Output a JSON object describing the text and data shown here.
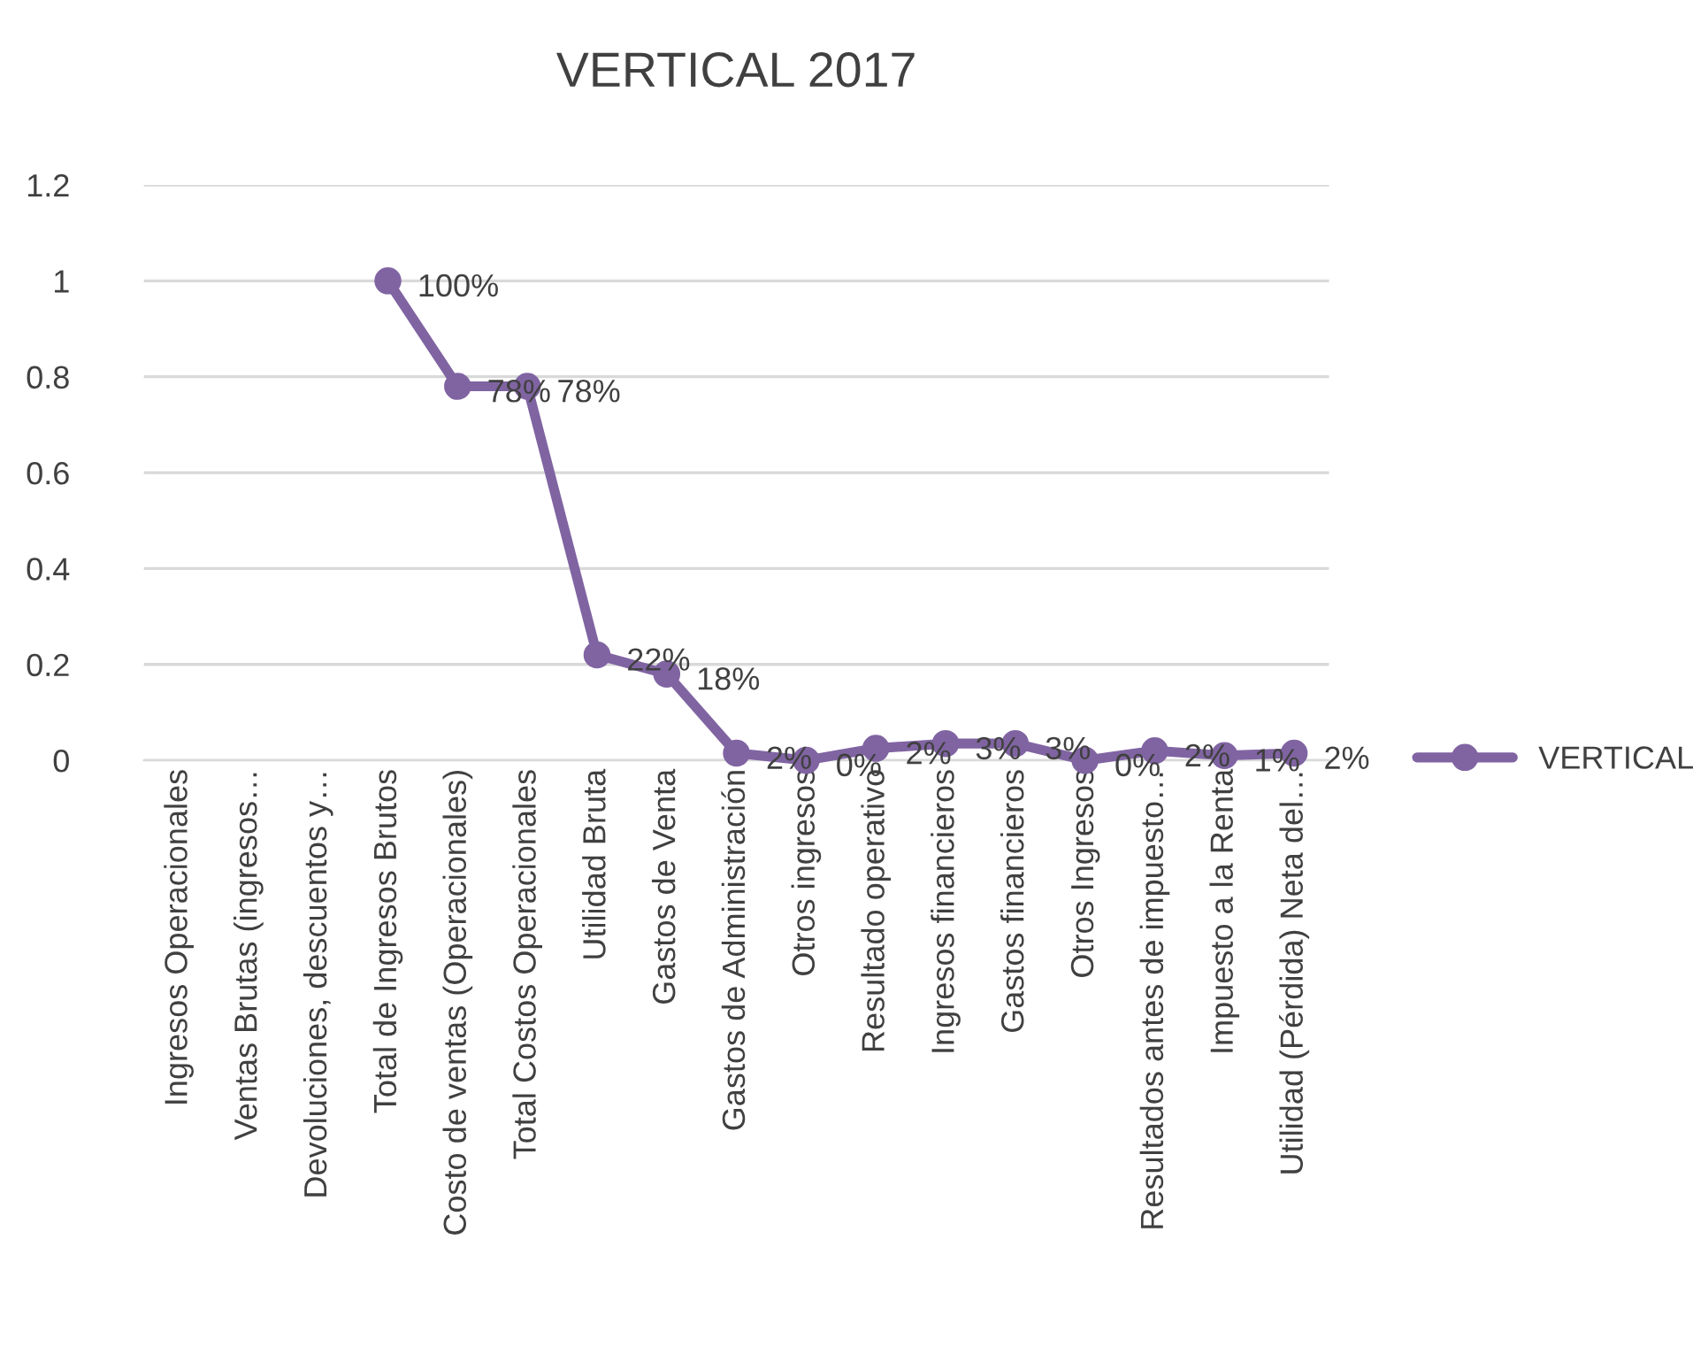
{
  "chart_data": {
    "type": "line",
    "title": "VERTICAL 2017",
    "categories": [
      "Ingresos Operacionales",
      "Ventas Brutas (ingresos…",
      "Devoluciones, descuentos y…",
      "Total de Ingresos Brutos",
      "Costo de ventas (Operacionales)",
      "Total Costos Operacionales",
      "Utilidad Bruta",
      "Gastos de Venta",
      "Gastos de Administración",
      "Otros ingresos",
      "Resultado operativo",
      "Ingresos financieros",
      "Gastos financieros",
      "Otros Ingresos",
      "Resultados antes de impuesto…",
      "Impuesto a la Renta",
      "Utilidad (Pérdida) Neta del…"
    ],
    "series": [
      {
        "name": "VERTICAL",
        "color": "#8064a2",
        "values": [
          null,
          null,
          null,
          1,
          0.78,
          0.78,
          0.22,
          0.18,
          0.015,
          0,
          0.025,
          0.035,
          0.035,
          0,
          0.02,
          0.01,
          0.015
        ],
        "value_labels": [
          null,
          null,
          null,
          "100%",
          "78%",
          "78%",
          "22%",
          "18%",
          "2%",
          "0%",
          "2%",
          "3%",
          "3%",
          "0%",
          "2%",
          "1%",
          "2%"
        ]
      }
    ],
    "ylim": [
      0,
      1.2
    ],
    "yticks": [
      0,
      0.2,
      0.4,
      0.6,
      0.8,
      1,
      1.2
    ],
    "grid": "y",
    "legend": "right",
    "marker": "circle",
    "line_style": "solid"
  }
}
